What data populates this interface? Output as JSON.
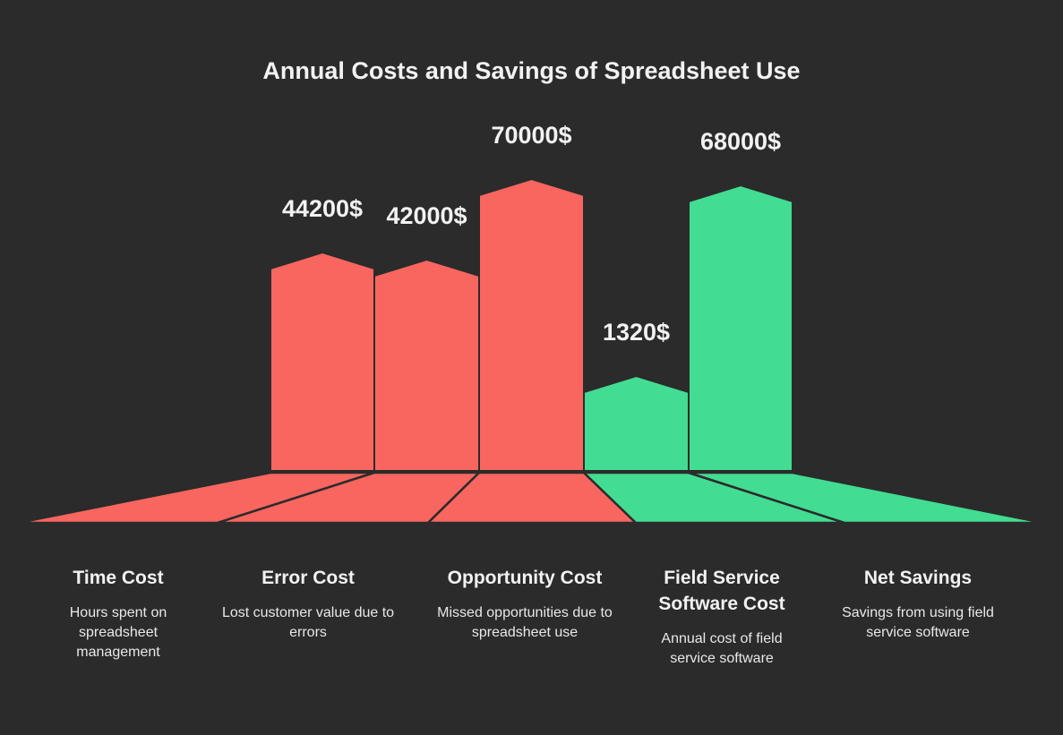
{
  "chart_data": {
    "type": "bar",
    "title": "Annual Costs and Savings of Spreadsheet Use",
    "categories": [
      "Time Cost",
      "Error Cost",
      "Opportunity Cost",
      "Field Service Software Cost",
      "Net Savings"
    ],
    "descriptions": [
      "Hours spent on spreadsheet management",
      "Lost customer value due to errors",
      "Missed opportunities due to spreadsheet use",
      "Annual cost of field service software",
      "Savings from using field service software"
    ],
    "values": [
      44200,
      42000,
      70000,
      1320,
      68000
    ],
    "value_labels": [
      "44200$",
      "42000$",
      "70000$",
      "1320$",
      "68000$"
    ],
    "kinds": [
      "cost",
      "cost",
      "cost",
      "cost-software",
      "savings"
    ],
    "colors": {
      "cost": "#f8665f",
      "savings": "#42dc93",
      "background": "#2b2b2b"
    },
    "bar_colors": [
      "#f8665f",
      "#f8665f",
      "#f8665f",
      "#42dc93",
      "#42dc93"
    ],
    "grid": false,
    "legend": "none"
  }
}
